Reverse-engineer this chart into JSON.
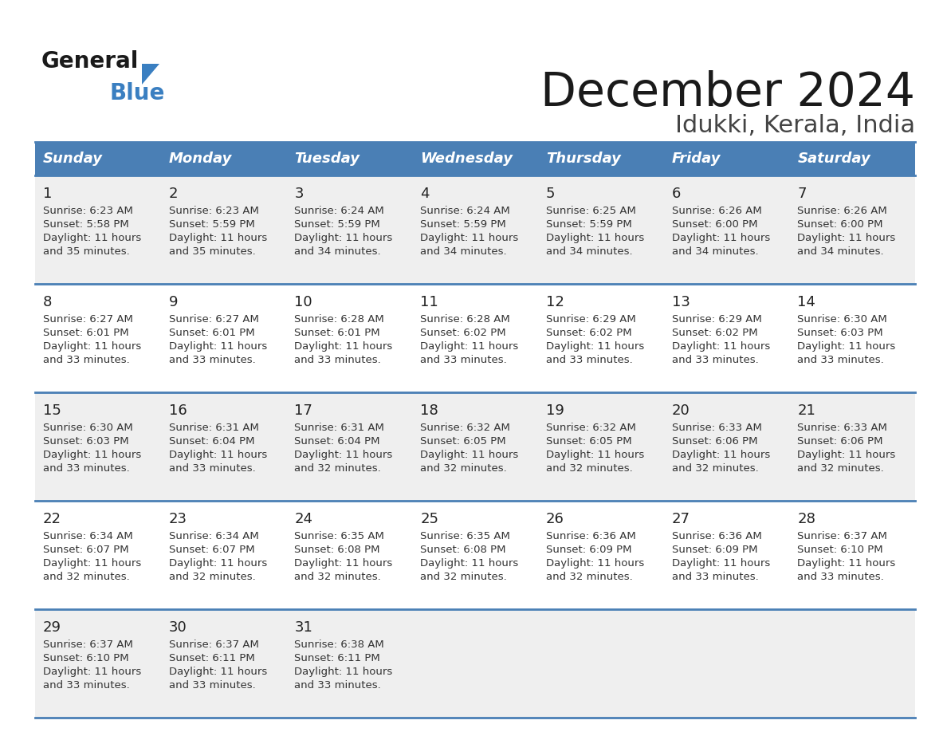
{
  "title": "December 2024",
  "subtitle": "Idukki, Kerala, India",
  "header_bg": "#4A7FB5",
  "header_text_color": "#FFFFFF",
  "row_bg_odd": "#EFEFEF",
  "row_bg_even": "#FFFFFF",
  "grid_line_color": "#4A7FB5",
  "text_color": "#333333",
  "day_num_color": "#222222",
  "days_of_week": [
    "Sunday",
    "Monday",
    "Tuesday",
    "Wednesday",
    "Thursday",
    "Friday",
    "Saturday"
  ],
  "calendar_data": [
    [
      {
        "day": "1",
        "sunrise": "6:23 AM",
        "sunset": "5:58 PM",
        "daylight_h": "11 hours",
        "daylight_m": "and 35 minutes."
      },
      {
        "day": "2",
        "sunrise": "6:23 AM",
        "sunset": "5:59 PM",
        "daylight_h": "11 hours",
        "daylight_m": "and 35 minutes."
      },
      {
        "day": "3",
        "sunrise": "6:24 AM",
        "sunset": "5:59 PM",
        "daylight_h": "11 hours",
        "daylight_m": "and 34 minutes."
      },
      {
        "day": "4",
        "sunrise": "6:24 AM",
        "sunset": "5:59 PM",
        "daylight_h": "11 hours",
        "daylight_m": "and 34 minutes."
      },
      {
        "day": "5",
        "sunrise": "6:25 AM",
        "sunset": "5:59 PM",
        "daylight_h": "11 hours",
        "daylight_m": "and 34 minutes."
      },
      {
        "day": "6",
        "sunrise": "6:26 AM",
        "sunset": "6:00 PM",
        "daylight_h": "11 hours",
        "daylight_m": "and 34 minutes."
      },
      {
        "day": "7",
        "sunrise": "6:26 AM",
        "sunset": "6:00 PM",
        "daylight_h": "11 hours",
        "daylight_m": "and 34 minutes."
      }
    ],
    [
      {
        "day": "8",
        "sunrise": "6:27 AM",
        "sunset": "6:01 PM",
        "daylight_h": "11 hours",
        "daylight_m": "and 33 minutes."
      },
      {
        "day": "9",
        "sunrise": "6:27 AM",
        "sunset": "6:01 PM",
        "daylight_h": "11 hours",
        "daylight_m": "and 33 minutes."
      },
      {
        "day": "10",
        "sunrise": "6:28 AM",
        "sunset": "6:01 PM",
        "daylight_h": "11 hours",
        "daylight_m": "and 33 minutes."
      },
      {
        "day": "11",
        "sunrise": "6:28 AM",
        "sunset": "6:02 PM",
        "daylight_h": "11 hours",
        "daylight_m": "and 33 minutes."
      },
      {
        "day": "12",
        "sunrise": "6:29 AM",
        "sunset": "6:02 PM",
        "daylight_h": "11 hours",
        "daylight_m": "and 33 minutes."
      },
      {
        "day": "13",
        "sunrise": "6:29 AM",
        "sunset": "6:02 PM",
        "daylight_h": "11 hours",
        "daylight_m": "and 33 minutes."
      },
      {
        "day": "14",
        "sunrise": "6:30 AM",
        "sunset": "6:03 PM",
        "daylight_h": "11 hours",
        "daylight_m": "and 33 minutes."
      }
    ],
    [
      {
        "day": "15",
        "sunrise": "6:30 AM",
        "sunset": "6:03 PM",
        "daylight_h": "11 hours",
        "daylight_m": "and 33 minutes."
      },
      {
        "day": "16",
        "sunrise": "6:31 AM",
        "sunset": "6:04 PM",
        "daylight_h": "11 hours",
        "daylight_m": "and 33 minutes."
      },
      {
        "day": "17",
        "sunrise": "6:31 AM",
        "sunset": "6:04 PM",
        "daylight_h": "11 hours",
        "daylight_m": "and 32 minutes."
      },
      {
        "day": "18",
        "sunrise": "6:32 AM",
        "sunset": "6:05 PM",
        "daylight_h": "11 hours",
        "daylight_m": "and 32 minutes."
      },
      {
        "day": "19",
        "sunrise": "6:32 AM",
        "sunset": "6:05 PM",
        "daylight_h": "11 hours",
        "daylight_m": "and 32 minutes."
      },
      {
        "day": "20",
        "sunrise": "6:33 AM",
        "sunset": "6:06 PM",
        "daylight_h": "11 hours",
        "daylight_m": "and 32 minutes."
      },
      {
        "day": "21",
        "sunrise": "6:33 AM",
        "sunset": "6:06 PM",
        "daylight_h": "11 hours",
        "daylight_m": "and 32 minutes."
      }
    ],
    [
      {
        "day": "22",
        "sunrise": "6:34 AM",
        "sunset": "6:07 PM",
        "daylight_h": "11 hours",
        "daylight_m": "and 32 minutes."
      },
      {
        "day": "23",
        "sunrise": "6:34 AM",
        "sunset": "6:07 PM",
        "daylight_h": "11 hours",
        "daylight_m": "and 32 minutes."
      },
      {
        "day": "24",
        "sunrise": "6:35 AM",
        "sunset": "6:08 PM",
        "daylight_h": "11 hours",
        "daylight_m": "and 32 minutes."
      },
      {
        "day": "25",
        "sunrise": "6:35 AM",
        "sunset": "6:08 PM",
        "daylight_h": "11 hours",
        "daylight_m": "and 32 minutes."
      },
      {
        "day": "26",
        "sunrise": "6:36 AM",
        "sunset": "6:09 PM",
        "daylight_h": "11 hours",
        "daylight_m": "and 32 minutes."
      },
      {
        "day": "27",
        "sunrise": "6:36 AM",
        "sunset": "6:09 PM",
        "daylight_h": "11 hours",
        "daylight_m": "and 33 minutes."
      },
      {
        "day": "28",
        "sunrise": "6:37 AM",
        "sunset": "6:10 PM",
        "daylight_h": "11 hours",
        "daylight_m": "and 33 minutes."
      }
    ],
    [
      {
        "day": "29",
        "sunrise": "6:37 AM",
        "sunset": "6:10 PM",
        "daylight_h": "11 hours",
        "daylight_m": "and 33 minutes."
      },
      {
        "day": "30",
        "sunrise": "6:37 AM",
        "sunset": "6:11 PM",
        "daylight_h": "11 hours",
        "daylight_m": "and 33 minutes."
      },
      {
        "day": "31",
        "sunrise": "6:38 AM",
        "sunset": "6:11 PM",
        "daylight_h": "11 hours",
        "daylight_m": "and 33 minutes."
      },
      null,
      null,
      null,
      null
    ]
  ],
  "logo_general_color": "#1a1a1a",
  "logo_blue_color": "#3a7fc1",
  "logo_triangle_color": "#3a7fc1"
}
